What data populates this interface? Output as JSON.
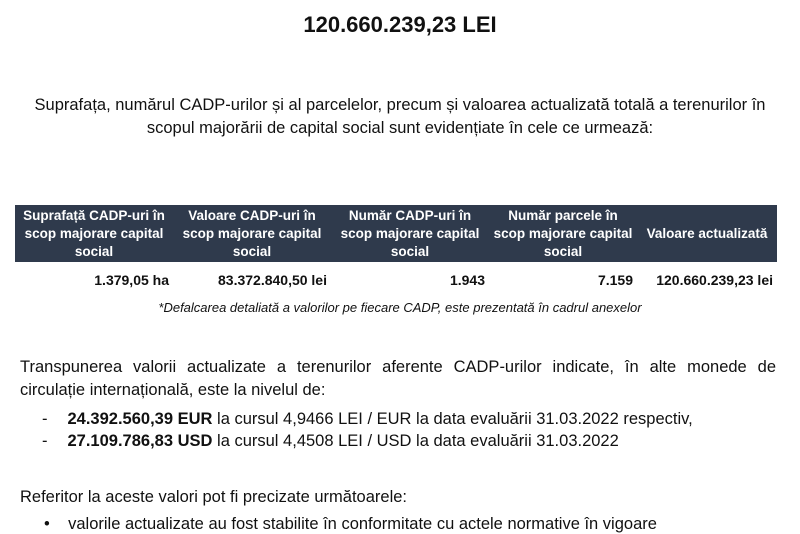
{
  "title": "120.660.239,23 LEI",
  "intro": "Suprafața, numărul CADP-urilor și al parcelelor, precum și valoarea actualizată totală a terenurilor în scopul majorării de capital social sunt evidențiate în cele ce urmează:",
  "table": {
    "headers": [
      "Suprafață CADP-uri în scop majorare capital social",
      "Valoare CADP-uri în scop majorare capital social",
      "Număr CADP-uri în scop majorare capital social",
      "Număr parcele în scop majorare capital social",
      "Valoare actualizată"
    ],
    "row": [
      "1.379,05 ha",
      "83.372.840,50 lei",
      "1.943",
      "7.159",
      "120.660.239,23 lei"
    ]
  },
  "footnote": "*Defalcarea detaliată a valorilor pe fiecare CADP, este prezentată în cadrul anexelor",
  "conversion_intro": "Transpunerea valorii actualizate a terenurilor aferente CADP-urilor indicate, în alte monede de circulație internațională, este la nivelul de:",
  "conversions": [
    {
      "amount": "24.392.560,39 EUR",
      "text": " la cursul 4,9466 LEI / EUR la data evaluării 31.03.2022 respectiv,"
    },
    {
      "amount": "27.109.786,83 USD",
      "text": " la cursul 4,4508 LEI / USD la data evaluării 31.03.2022"
    }
  ],
  "notes_intro": "Referitor la aceste valori pot fi precizate următoarele:",
  "bullets": [
    "valorile actualizate au fost stabilite în conformitate cu actele normative în vigoare"
  ]
}
